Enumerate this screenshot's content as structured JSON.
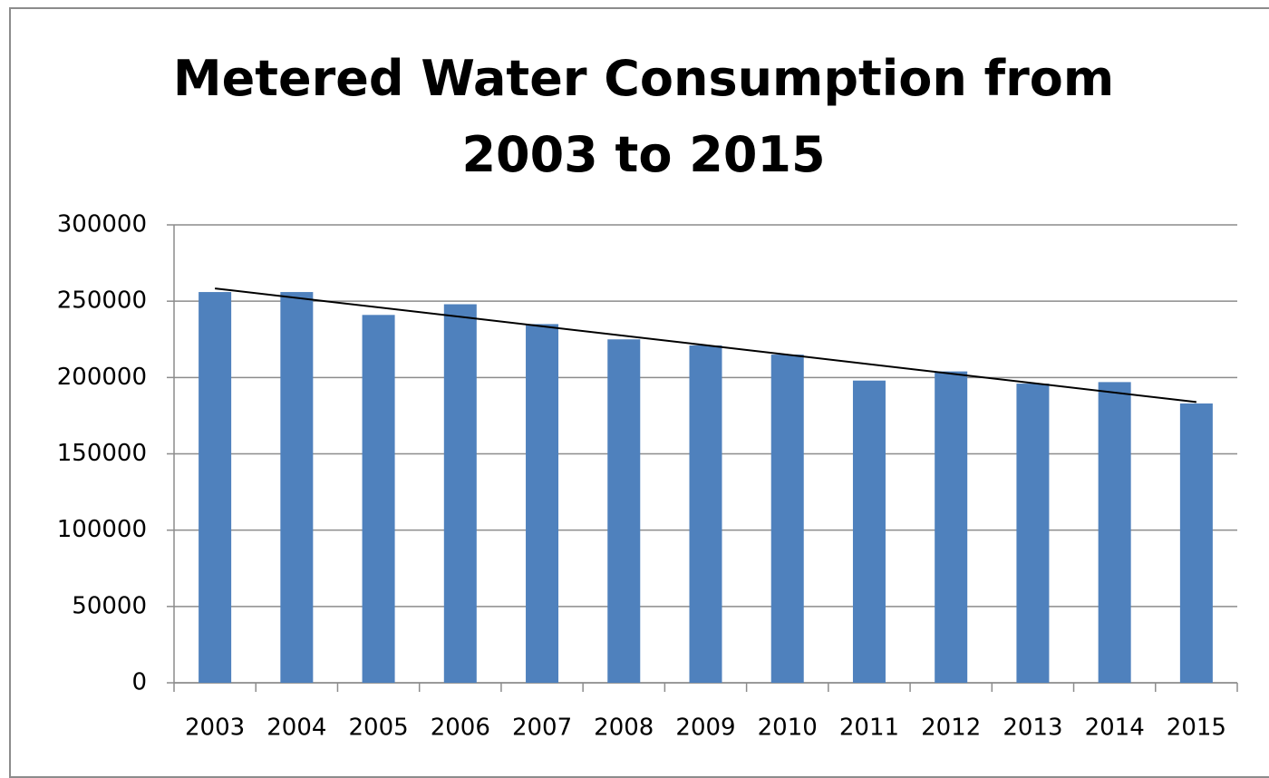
{
  "chart_data": {
    "type": "bar",
    "title": "Metered Water Consumption from 2003 to 2015",
    "categories": [
      "2003",
      "2004",
      "2005",
      "2006",
      "2007",
      "2008",
      "2009",
      "2010",
      "2011",
      "2012",
      "2013",
      "2014",
      "2015"
    ],
    "values": [
      256000,
      256000,
      241000,
      248000,
      235000,
      225000,
      221000,
      215000,
      198000,
      204000,
      196000,
      197000,
      183000
    ],
    "color": "#4f81bd",
    "ylim": [
      0,
      300000
    ],
    "yticks": [
      0,
      50000,
      100000,
      150000,
      200000,
      250000,
      300000
    ],
    "grid": true,
    "trendline": true
  }
}
